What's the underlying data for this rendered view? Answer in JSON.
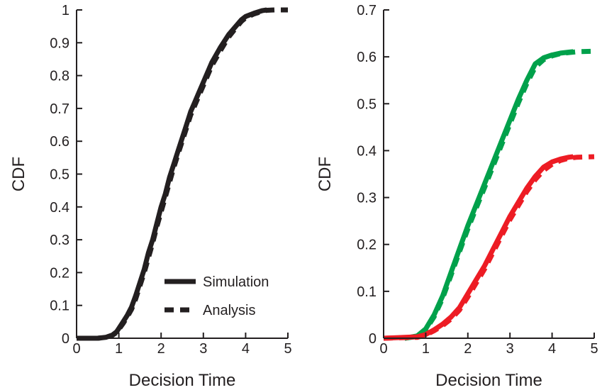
{
  "chart_data": [
    {
      "type": "line",
      "xlabel": "Decision Time",
      "ylabel": "CDF",
      "xlim": [
        0,
        5
      ],
      "ylim": [
        0,
        1
      ],
      "xticks": [
        "0",
        "1",
        "2",
        "3",
        "4",
        "5"
      ],
      "yticks": [
        "0",
        "0.1",
        "0.2",
        "0.3",
        "0.4",
        "0.5",
        "0.6",
        "0.7",
        "0.8",
        "0.9",
        "1"
      ],
      "legend": {
        "placement": "bottom-right",
        "entries": [
          "Simulation",
          "Analysis"
        ]
      },
      "series": [
        {
          "name": "Simulation",
          "style": "solid",
          "color": "#231f20",
          "x": [
            0,
            0.5,
            0.7,
            0.85,
            0.95,
            1.0,
            1.1,
            1.2,
            1.3,
            1.4,
            1.5,
            1.6,
            1.7,
            1.8,
            1.9,
            2.0,
            2.1,
            2.2,
            2.3,
            2.4,
            2.5,
            2.6,
            2.7,
            2.8,
            2.9,
            3.0,
            3.2,
            3.4,
            3.6,
            3.8,
            3.9,
            4.0,
            4.2,
            4.4,
            4.5
          ],
          "y": [
            0,
            0,
            0.003,
            0.01,
            0.02,
            0.03,
            0.05,
            0.07,
            0.095,
            0.13,
            0.17,
            0.21,
            0.26,
            0.3,
            0.35,
            0.4,
            0.44,
            0.49,
            0.53,
            0.57,
            0.61,
            0.65,
            0.69,
            0.72,
            0.75,
            0.78,
            0.84,
            0.885,
            0.925,
            0.955,
            0.97,
            0.98,
            0.99,
            0.998,
            1.0
          ]
        },
        {
          "name": "Analysis",
          "style": "dashed",
          "color": "#231f20",
          "x": [
            0,
            0.5,
            0.7,
            0.85,
            0.95,
            1.0,
            1.1,
            1.2,
            1.3,
            1.4,
            1.5,
            1.6,
            1.7,
            1.8,
            1.9,
            2.0,
            2.1,
            2.2,
            2.3,
            2.4,
            2.5,
            2.6,
            2.7,
            2.8,
            2.9,
            3.0,
            3.2,
            3.4,
            3.6,
            3.8,
            3.9,
            4.0,
            4.2,
            4.4,
            4.5,
            4.7,
            5.0
          ],
          "y": [
            0,
            0,
            0.003,
            0.009,
            0.018,
            0.027,
            0.045,
            0.065,
            0.088,
            0.12,
            0.16,
            0.2,
            0.245,
            0.29,
            0.34,
            0.385,
            0.43,
            0.475,
            0.52,
            0.56,
            0.6,
            0.64,
            0.68,
            0.71,
            0.74,
            0.77,
            0.83,
            0.875,
            0.918,
            0.95,
            0.965,
            0.976,
            0.988,
            0.996,
            0.999,
            1.0,
            1.0
          ]
        }
      ]
    },
    {
      "type": "line",
      "xlabel": "Decision Time",
      "ylabel": "CDF",
      "xlim": [
        0,
        5
      ],
      "ylim": [
        0,
        0.7
      ],
      "xticks": [
        "0",
        "1",
        "2",
        "3",
        "4",
        "5"
      ],
      "yticks": [
        "0",
        "0.1",
        "0.2",
        "0.3",
        "0.4",
        "0.5",
        "0.6",
        "0.7"
      ],
      "series": [
        {
          "color": "#00a14b",
          "style": "solid",
          "x": [
            0.5,
            0.8,
            1.0,
            1.2,
            1.4,
            1.6,
            1.8,
            2.0,
            2.2,
            2.4,
            2.6,
            2.8,
            3.0,
            3.2,
            3.4,
            3.6,
            3.8,
            4.0,
            4.2,
            4.4,
            4.5
          ],
          "y": [
            0,
            0.005,
            0.02,
            0.05,
            0.09,
            0.14,
            0.19,
            0.24,
            0.285,
            0.33,
            0.375,
            0.42,
            0.465,
            0.51,
            0.55,
            0.585,
            0.598,
            0.604,
            0.608,
            0.61,
            0.611
          ]
        },
        {
          "color": "#00a14b",
          "style": "dashed",
          "x": [
            0.5,
            0.8,
            1.0,
            1.2,
            1.4,
            1.6,
            1.8,
            2.0,
            2.2,
            2.4,
            2.6,
            2.8,
            3.0,
            3.2,
            3.4,
            3.6,
            3.8,
            4.0,
            4.2,
            4.4,
            4.6,
            5.0
          ],
          "y": [
            0,
            0.004,
            0.018,
            0.046,
            0.085,
            0.134,
            0.184,
            0.233,
            0.278,
            0.322,
            0.367,
            0.412,
            0.457,
            0.502,
            0.543,
            0.578,
            0.594,
            0.602,
            0.607,
            0.609,
            0.611,
            0.612
          ]
        },
        {
          "color": "#ed1c24",
          "style": "solid",
          "x": [
            0,
            0.8,
            1.0,
            1.2,
            1.4,
            1.6,
            1.8,
            2.0,
            2.2,
            2.4,
            2.6,
            2.8,
            3.0,
            3.2,
            3.4,
            3.6,
            3.8,
            4.0,
            4.2,
            4.4,
            4.5
          ],
          "y": [
            0,
            0.003,
            0.008,
            0.018,
            0.03,
            0.045,
            0.065,
            0.095,
            0.125,
            0.155,
            0.19,
            0.225,
            0.26,
            0.29,
            0.32,
            0.345,
            0.365,
            0.376,
            0.382,
            0.386,
            0.387
          ]
        },
        {
          "color": "#ed1c24",
          "style": "dashed",
          "x": [
            0,
            0.8,
            1.0,
            1.2,
            1.4,
            1.6,
            1.8,
            2.0,
            2.2,
            2.4,
            2.6,
            2.8,
            3.0,
            3.2,
            3.4,
            3.6,
            3.8,
            4.0,
            4.2,
            4.4,
            4.6,
            5.0
          ],
          "y": [
            0,
            0.002,
            0.007,
            0.016,
            0.027,
            0.041,
            0.06,
            0.088,
            0.118,
            0.148,
            0.183,
            0.218,
            0.253,
            0.283,
            0.313,
            0.338,
            0.358,
            0.371,
            0.379,
            0.384,
            0.386,
            0.387
          ]
        }
      ]
    }
  ]
}
